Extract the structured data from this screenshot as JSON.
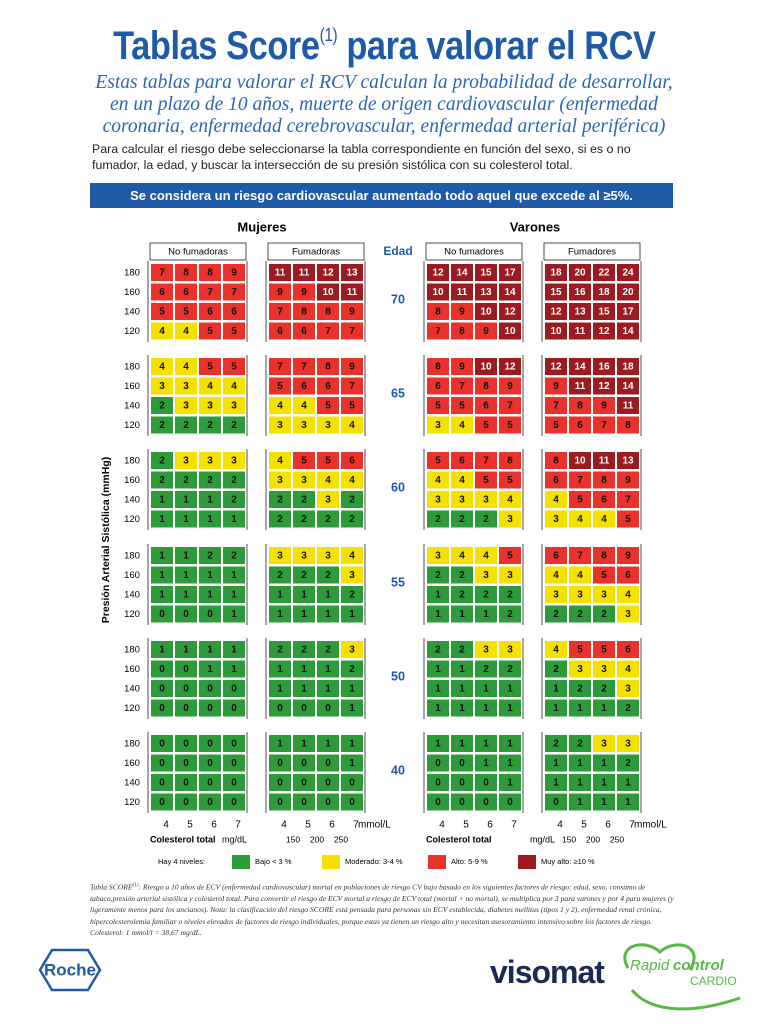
{
  "header": {
    "title_start": "Tablas Score",
    "title_sup": "(1)",
    "title_end": " para valorar el RCV",
    "intro": [
      "Estas tablas para valorar el RCV calculan la probabilidad de desarrollar,",
      "en un plazo de 10 años, muerte de origen cardiovascular (enfermedad",
      "coronaria, enfermedad cerebrovascular, enfermedad arterial periférica)"
    ],
    "instructions": "Para calcular el riesgo debe seleccionarse la tabla correspondiente en función del sexo, si es o no fumador, la edad, y buscar la intersección de su presión sistólica con su colesterol total.",
    "banner": "Se considera un riesgo cardiovascular aumentado todo aquel que excede al ≥5%."
  },
  "table": {
    "groups": [
      "Mujeres",
      "Varones"
    ],
    "age_header": "Edad",
    "y_axis_label": "Presión Arterial Sistólica (mmHg)",
    "quadrants": [
      "No fumadoras",
      "Fumadoras",
      "No fumadores",
      "Fumadores"
    ],
    "sbp_labels": [
      "180",
      "160",
      "140",
      "120"
    ],
    "ages": [
      {
        "age": "70",
        "quadrants": [
          [
            [
              7,
              8,
              8,
              9
            ],
            [
              6,
              6,
              7,
              7
            ],
            [
              5,
              5,
              6,
              6
            ],
            [
              4,
              4,
              5,
              5
            ]
          ],
          [
            [
              11,
              11,
              12,
              13
            ],
            [
              9,
              9,
              10,
              11
            ],
            [
              7,
              8,
              8,
              9
            ],
            [
              6,
              6,
              7,
              7
            ]
          ],
          [
            [
              12,
              14,
              15,
              17
            ],
            [
              10,
              11,
              13,
              14
            ],
            [
              8,
              9,
              10,
              12
            ],
            [
              7,
              8,
              9,
              10
            ]
          ],
          [
            [
              18,
              20,
              22,
              24
            ],
            [
              15,
              16,
              18,
              20
            ],
            [
              12,
              13,
              15,
              17
            ],
            [
              10,
              11,
              12,
              14
            ]
          ]
        ]
      },
      {
        "age": "65",
        "quadrants": [
          [
            [
              4,
              4,
              5,
              5
            ],
            [
              3,
              3,
              4,
              4
            ],
            [
              2,
              3,
              3,
              3
            ],
            [
              2,
              2,
              2,
              2
            ]
          ],
          [
            [
              7,
              7,
              8,
              9
            ],
            [
              5,
              6,
              6,
              7
            ],
            [
              4,
              4,
              5,
              5
            ],
            [
              3,
              3,
              3,
              4
            ]
          ],
          [
            [
              8,
              9,
              10,
              12
            ],
            [
              6,
              7,
              8,
              9
            ],
            [
              5,
              5,
              6,
              7
            ],
            [
              3,
              4,
              5,
              5
            ]
          ],
          [
            [
              12,
              14,
              16,
              18
            ],
            [
              9,
              11,
              12,
              14
            ],
            [
              7,
              8,
              9,
              11
            ],
            [
              5,
              6,
              7,
              8
            ]
          ]
        ]
      },
      {
        "age": "60",
        "quadrants": [
          [
            [
              2,
              3,
              3,
              3
            ],
            [
              2,
              2,
              2,
              2
            ],
            [
              1,
              1,
              1,
              2
            ],
            [
              1,
              1,
              1,
              1
            ]
          ],
          [
            [
              4,
              5,
              5,
              6
            ],
            [
              3,
              3,
              4,
              4
            ],
            [
              2,
              2,
              3,
              2
            ],
            [
              2,
              2,
              2,
              2
            ]
          ],
          [
            [
              5,
              6,
              7,
              8
            ],
            [
              4,
              4,
              5,
              5
            ],
            [
              3,
              3,
              3,
              4
            ],
            [
              2,
              2,
              2,
              3
            ]
          ],
          [
            [
              8,
              10,
              11,
              13
            ],
            [
              6,
              7,
              8,
              9
            ],
            [
              4,
              5,
              6,
              7
            ],
            [
              3,
              4,
              4,
              5
            ]
          ]
        ]
      },
      {
        "age": "55",
        "quadrants": [
          [
            [
              1,
              1,
              2,
              2
            ],
            [
              1,
              1,
              1,
              1
            ],
            [
              1,
              1,
              1,
              1
            ],
            [
              0,
              0,
              0,
              1
            ]
          ],
          [
            [
              3,
              3,
              3,
              4
            ],
            [
              2,
              2,
              2,
              3
            ],
            [
              1,
              1,
              1,
              2
            ],
            [
              1,
              1,
              1,
              1
            ]
          ],
          [
            [
              3,
              4,
              4,
              5
            ],
            [
              2,
              2,
              3,
              3
            ],
            [
              1,
              2,
              2,
              2
            ],
            [
              1,
              1,
              1,
              2
            ]
          ],
          [
            [
              6,
              7,
              8,
              9
            ],
            [
              4,
              4,
              5,
              6
            ],
            [
              3,
              3,
              3,
              4
            ],
            [
              2,
              2,
              2,
              3
            ]
          ]
        ]
      },
      {
        "age": "50",
        "quadrants": [
          [
            [
              1,
              1,
              1,
              1
            ],
            [
              0,
              0,
              1,
              1
            ],
            [
              0,
              0,
              0,
              0
            ],
            [
              0,
              0,
              0,
              0
            ]
          ],
          [
            [
              2,
              2,
              2,
              3
            ],
            [
              1,
              1,
              1,
              2
            ],
            [
              1,
              1,
              1,
              1
            ],
            [
              0,
              0,
              0,
              1
            ]
          ],
          [
            [
              2,
              2,
              3,
              3
            ],
            [
              1,
              1,
              2,
              2
            ],
            [
              1,
              1,
              1,
              1
            ],
            [
              1,
              1,
              1,
              1
            ]
          ],
          [
            [
              4,
              5,
              5,
              6
            ],
            [
              2,
              3,
              3,
              4
            ],
            [
              1,
              2,
              2,
              3
            ],
            [
              1,
              1,
              1,
              2
            ]
          ]
        ]
      },
      {
        "age": "40",
        "quadrants": [
          [
            [
              0,
              0,
              0,
              0
            ],
            [
              0,
              0,
              0,
              0
            ],
            [
              0,
              0,
              0,
              0
            ],
            [
              0,
              0,
              0,
              0
            ]
          ],
          [
            [
              1,
              1,
              1,
              1
            ],
            [
              0,
              0,
              0,
              1
            ],
            [
              0,
              0,
              0,
              0
            ],
            [
              0,
              0,
              0,
              0
            ]
          ],
          [
            [
              1,
              1,
              1,
              1
            ],
            [
              0,
              0,
              1,
              1
            ],
            [
              0,
              0,
              0,
              1
            ],
            [
              0,
              0,
              0,
              0
            ]
          ],
          [
            [
              2,
              2,
              3,
              3
            ],
            [
              1,
              1,
              1,
              2
            ],
            [
              1,
              1,
              1,
              1
            ],
            [
              0,
              1,
              1,
              1
            ]
          ]
        ]
      }
    ],
    "chol_ticks": [
      "4",
      "5",
      "6",
      "7"
    ],
    "chol_unit": "mmol/L",
    "chol_title": "Colesterol total",
    "mgdl_unit": "mg/dL",
    "mgdl_ticks": [
      "150",
      "200",
      "250"
    ]
  },
  "legend": {
    "intro": "Hay 4 niveles:",
    "levels": [
      {
        "label": "Bajo < 3 %",
        "min": 0,
        "color": "#2e9b3b"
      },
      {
        "label": "Moderado: 3-4 %",
        "min": 3,
        "color": "#f5e100"
      },
      {
        "label": "Alto: 5-9 %",
        "min": 5,
        "color": "#e8322b"
      },
      {
        "label": "Muy alto: ≥10 %",
        "min": 10,
        "color": "#9b1b20"
      }
    ]
  },
  "footnote": {
    "lead": "Tabla SCORE",
    "sup": "(1)",
    "text": ": Riesgo a 10 años de ECV (enfermedad cardiovascular) mortal en poblaciones de riesgo CV bajo basado en los siguientes factores de riesgo: edad, sexo, consumo de tabaco,presión arterial sistólica y colesterol total. Para convertir el riesgo de ECV mortal a riesgo de ECV total (mortal + no mortal), se multiplica por 3 para varones y por 4 para mujeres (y ligeramente menos para los ancianos). Nota: la clasificación del riesgo SCORE está pensada para personas sin ECV establecida, diabetes mellitus (tipos 1 y 2), enfermedad renal crónica, hipercolesterolemia familiar o niveles elevados de factores de riesgo individuales, porque estas ya tienen un riesgo alto y necesitan asesoramiento intensivo sobre los factores de riesgo. Colesterol: 1 mmol/l = 38,67 mg/dL."
  },
  "logos": {
    "roche": "Roche",
    "visomat": "visomat",
    "rapid": "Rapid",
    "control": "control",
    "cardio": "CARDIO"
  }
}
